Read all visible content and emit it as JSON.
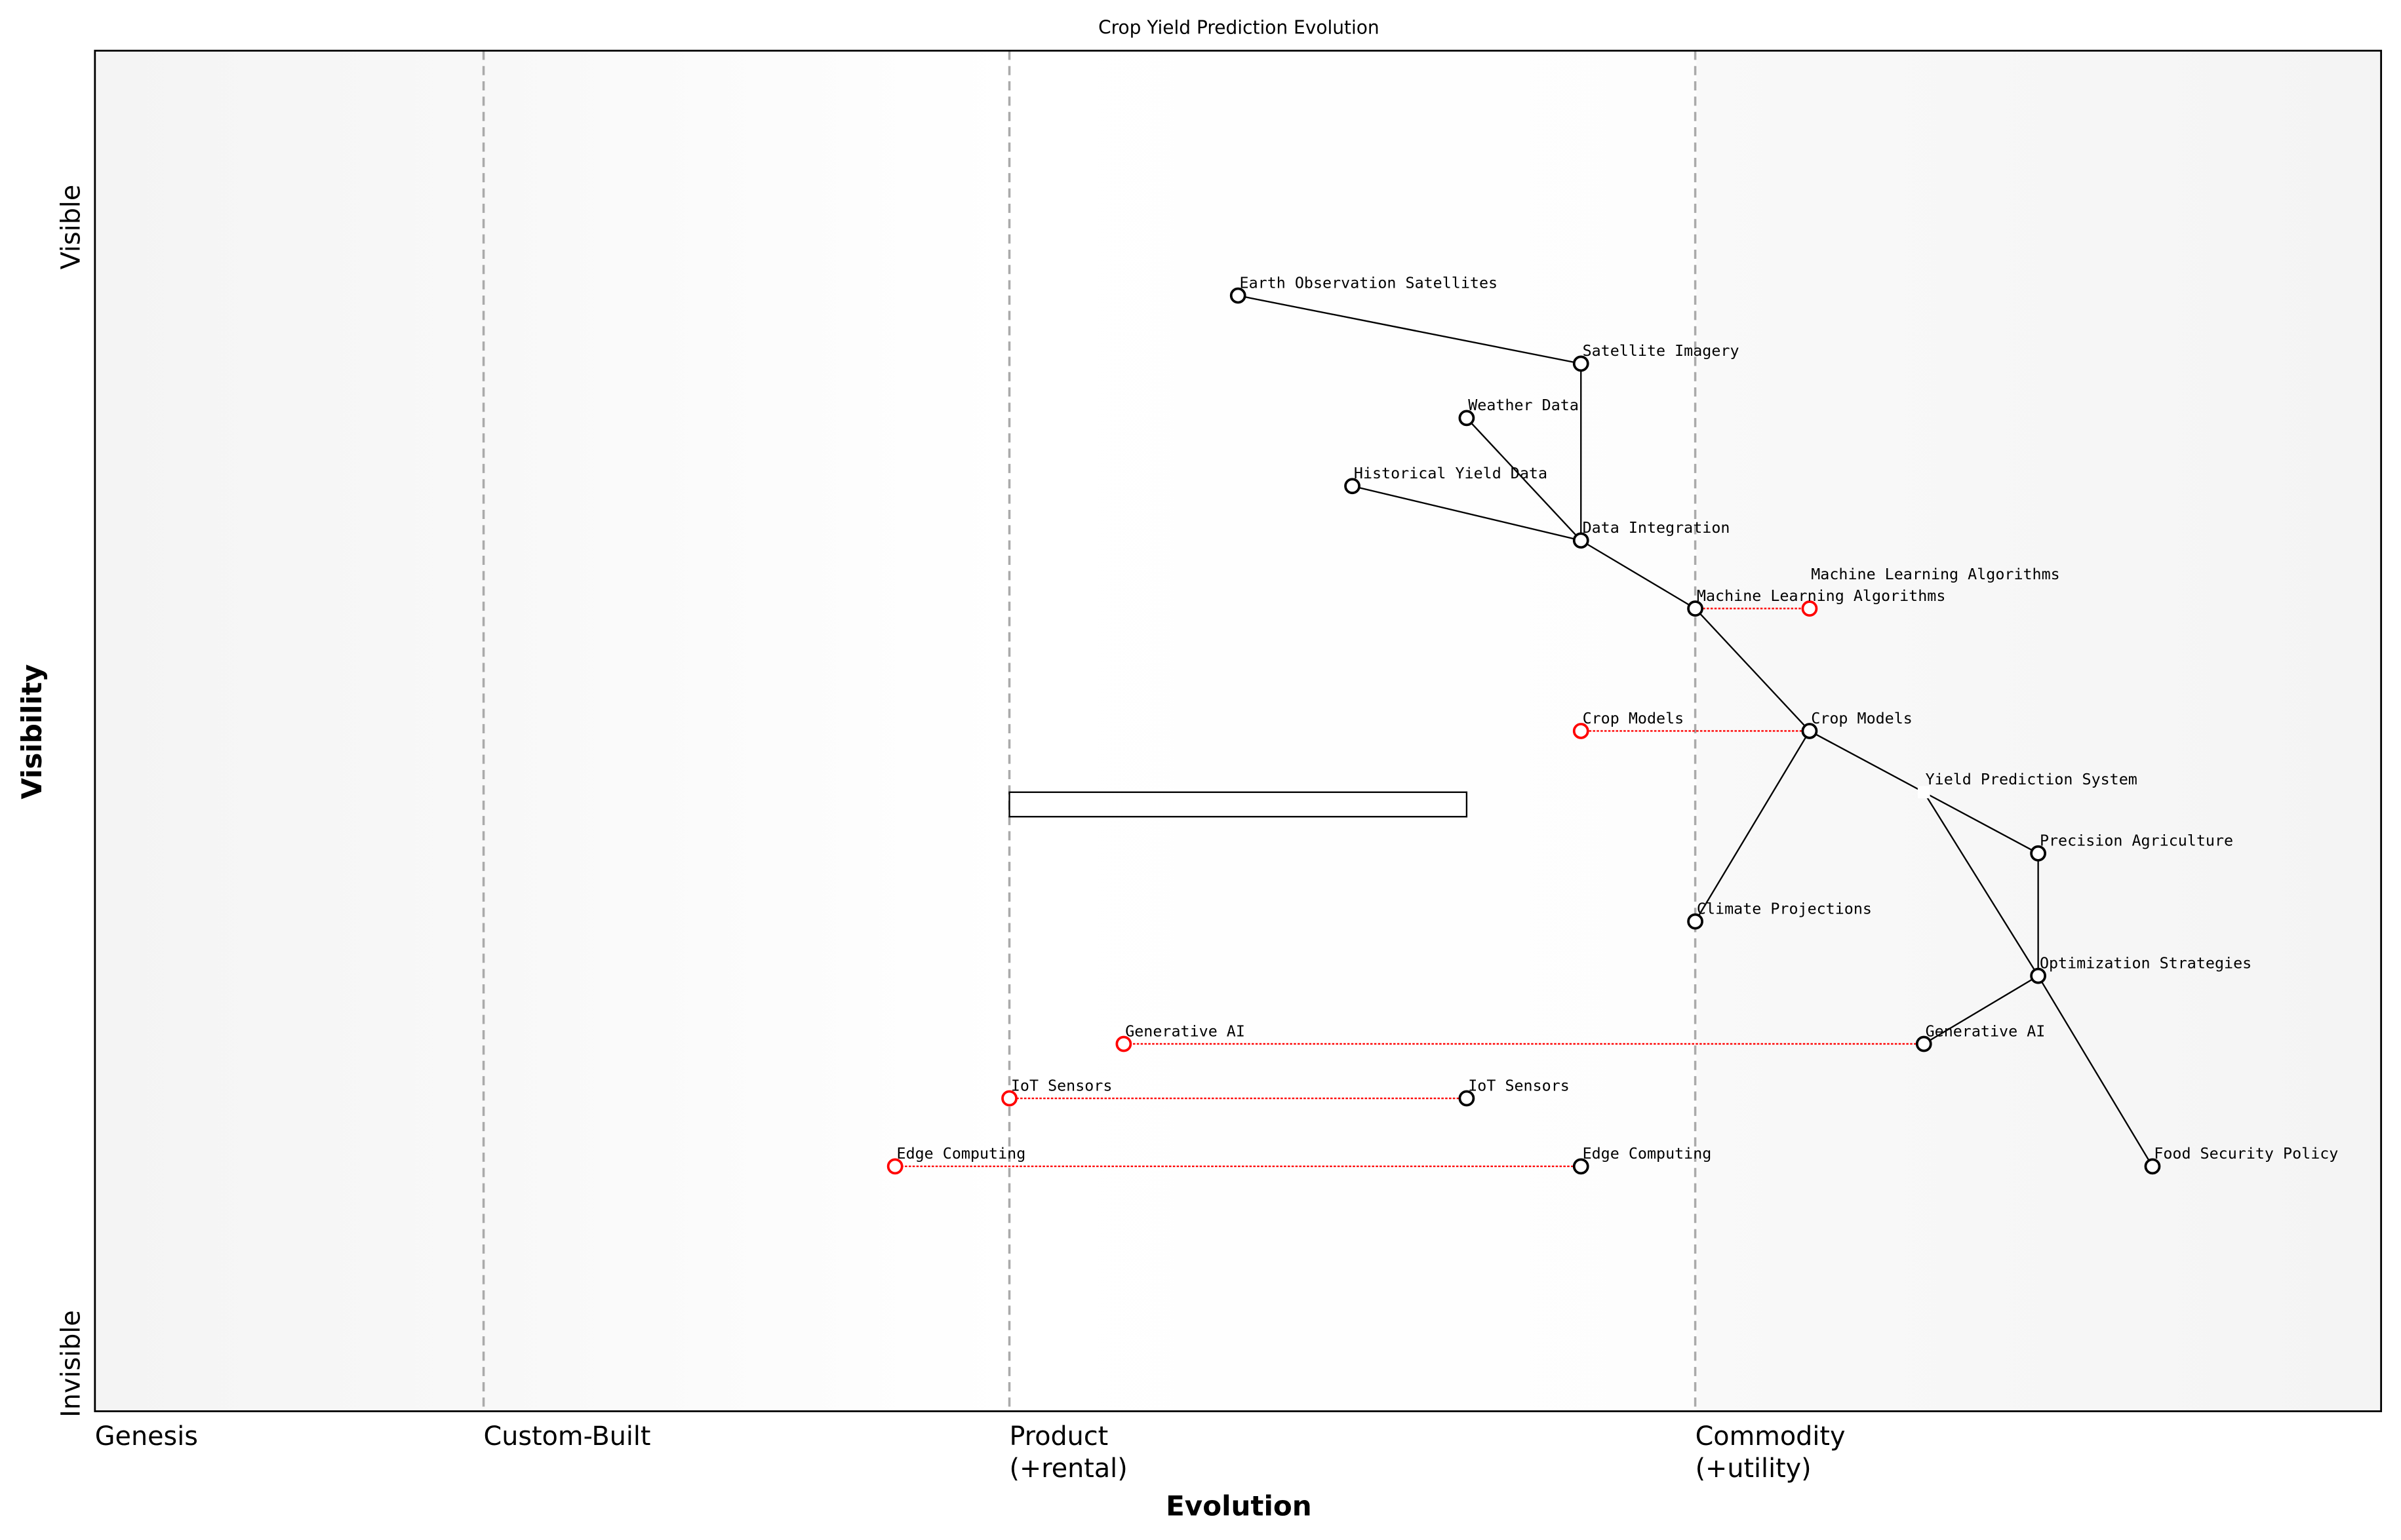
{
  "title": "Crop Yield Prediction Evolution",
  "axes": {
    "x_label": "Evolution",
    "y_label": "Visibility",
    "y_top": "Visible",
    "y_bottom": "Invisible",
    "stages": [
      {
        "label": "Genesis",
        "x": 0.0
      },
      {
        "label": "Custom-Built",
        "x": 0.17
      },
      {
        "label": "Product",
        "label2": "(+rental)",
        "x": 0.4
      },
      {
        "label": "Commodity",
        "label2": "(+utility)",
        "x": 0.7
      }
    ]
  },
  "colors": {
    "node": "#000000",
    "evolved": "#ff0000",
    "stage_line": "#aaaaaa"
  },
  "components": [
    {
      "id": "eos",
      "name": "Earth Observation Satellites",
      "evolution": 0.5,
      "visibility": 0.82
    },
    {
      "id": "sat",
      "name": "Satellite Imagery",
      "evolution": 0.65,
      "visibility": 0.77
    },
    {
      "id": "wea",
      "name": "Weather Data",
      "evolution": 0.6,
      "visibility": 0.73
    },
    {
      "id": "his",
      "name": "Historical Yield Data",
      "evolution": 0.55,
      "visibility": 0.68
    },
    {
      "id": "din",
      "name": "Data Integration",
      "evolution": 0.65,
      "visibility": 0.64
    },
    {
      "id": "mla",
      "name": "Machine Learning Algorithms",
      "evolution": 0.7,
      "visibility": 0.59
    },
    {
      "id": "crm",
      "name": "Crop Models",
      "evolution": 0.75,
      "visibility": 0.5
    },
    {
      "id": "yps",
      "name": "Yield Prediction System",
      "evolution": 0.8,
      "visibility": 0.455,
      "hidden_marker": true
    },
    {
      "id": "pra",
      "name": "Precision Agriculture",
      "evolution": 0.85,
      "visibility": 0.41
    },
    {
      "id": "cli",
      "name": "Climate Projections",
      "evolution": 0.7,
      "visibility": 0.36
    },
    {
      "id": "opt",
      "name": "Optimization Strategies",
      "evolution": 0.85,
      "visibility": 0.32
    },
    {
      "id": "gen",
      "name": "Generative AI",
      "evolution": 0.8,
      "visibility": 0.27
    },
    {
      "id": "iot",
      "name": "IoT Sensors",
      "evolution": 0.6,
      "visibility": 0.23
    },
    {
      "id": "edg",
      "name": "Edge Computing",
      "evolution": 0.65,
      "visibility": 0.18
    },
    {
      "id": "fsp",
      "name": "Food Security Policy",
      "evolution": 0.9,
      "visibility": 0.18
    }
  ],
  "evolved": [
    {
      "name": "Machine Learning Algorithms",
      "from": 0.7,
      "to": 0.75,
      "visibility": 0.59
    },
    {
      "name": "Crop Models",
      "from": 0.75,
      "to": 0.65,
      "visibility": 0.5
    },
    {
      "name": "Generative AI",
      "from": 0.8,
      "to": 0.45,
      "visibility": 0.27
    },
    {
      "name": "IoT Sensors",
      "from": 0.6,
      "to": 0.4,
      "visibility": 0.23
    },
    {
      "name": "Edge Computing",
      "from": 0.65,
      "to": 0.35,
      "visibility": 0.18
    }
  ],
  "pipeline": {
    "evolution_start": 0.4,
    "evolution_end": 0.6,
    "visibility_top": 0.455,
    "visibility_bottom": 0.437
  },
  "links": [
    [
      "eos",
      "sat"
    ],
    [
      "sat",
      "din"
    ],
    [
      "wea",
      "din"
    ],
    [
      "his",
      "din"
    ],
    [
      "din",
      "mla"
    ],
    [
      "mla",
      "crm"
    ],
    [
      "crm",
      "yps"
    ],
    [
      "crm",
      "cli"
    ],
    [
      "yps",
      "pra"
    ],
    [
      "yps",
      "opt"
    ],
    [
      "pra",
      "opt"
    ],
    [
      "opt",
      "gen"
    ],
    [
      "opt",
      "fsp"
    ]
  ]
}
